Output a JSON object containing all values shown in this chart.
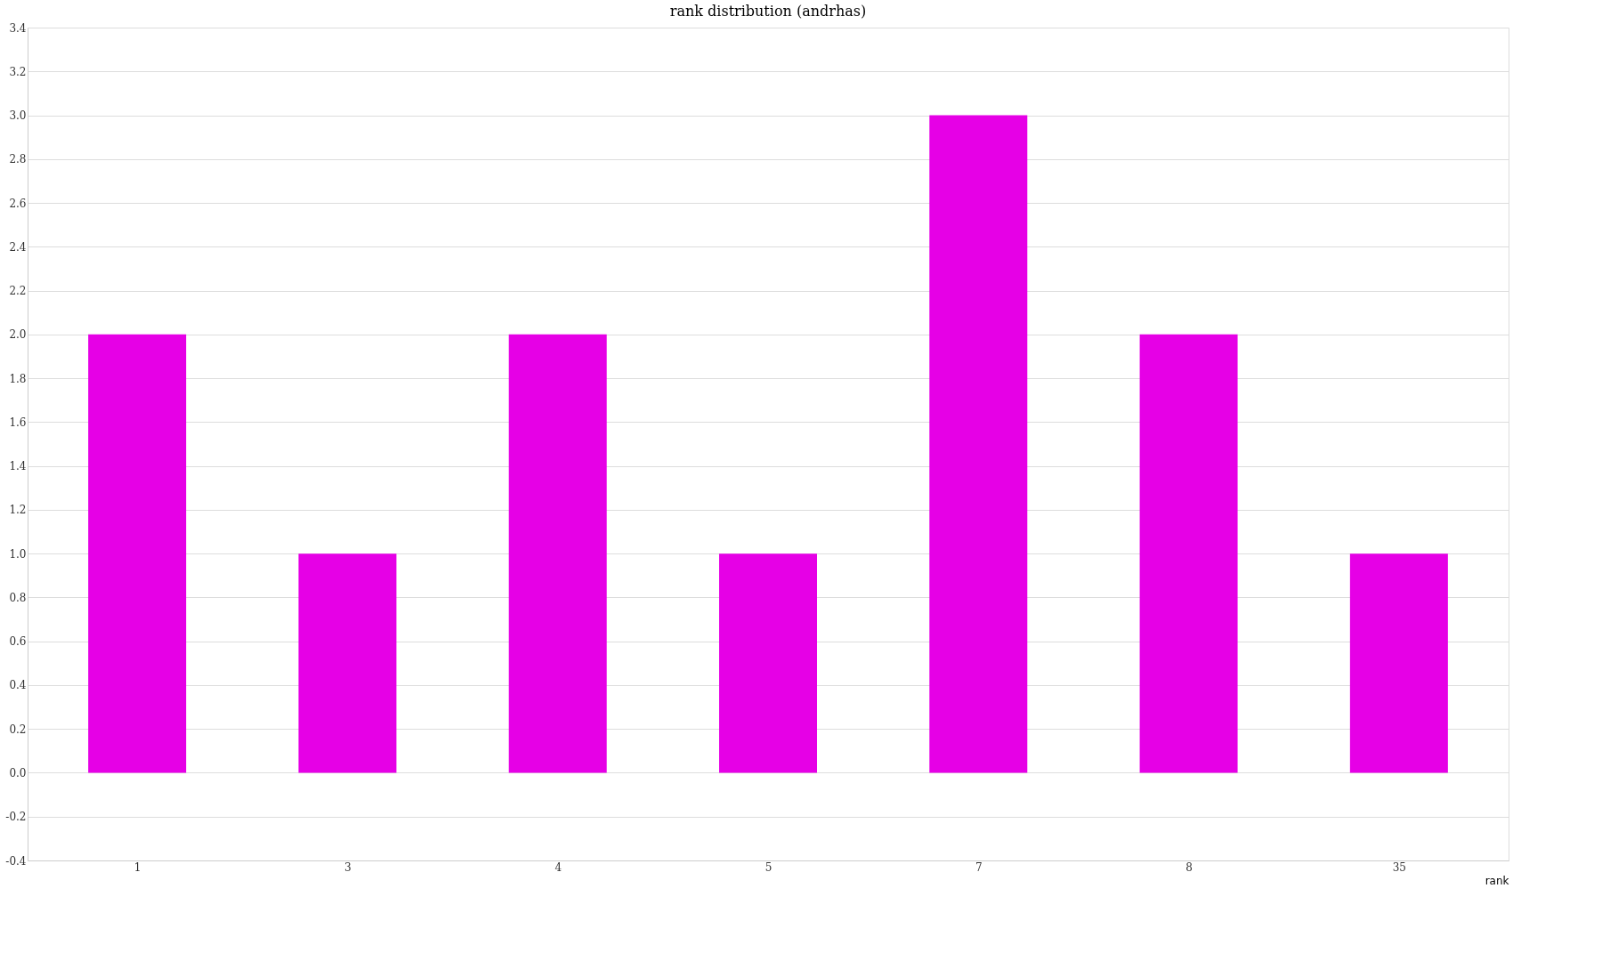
{
  "chart_data": {
    "type": "bar",
    "title": "rank distribution (andrhas)",
    "xlabel": "rank",
    "categories": [
      "1",
      "3",
      "4",
      "5",
      "7",
      "8",
      "35"
    ],
    "values": [
      2,
      1,
      2,
      1,
      3,
      2,
      1
    ],
    "color": "#e600e6",
    "ylim": [
      -0.4,
      3.4
    ],
    "yticks": [
      -0.4,
      -0.2,
      {
        "value": 0,
        "label": "0.0"
      },
      0.2,
      0.4,
      0.6,
      0.8,
      {
        "value": 1,
        "label": "1.0"
      },
      1.2,
      1.4,
      1.6,
      1.8,
      {
        "value": 2,
        "label": "2.0"
      },
      2.2,
      2.4,
      2.6,
      2.8,
      {
        "value": 3,
        "label": "3.0"
      },
      3.2,
      3.4
    ],
    "grid": "y"
  }
}
